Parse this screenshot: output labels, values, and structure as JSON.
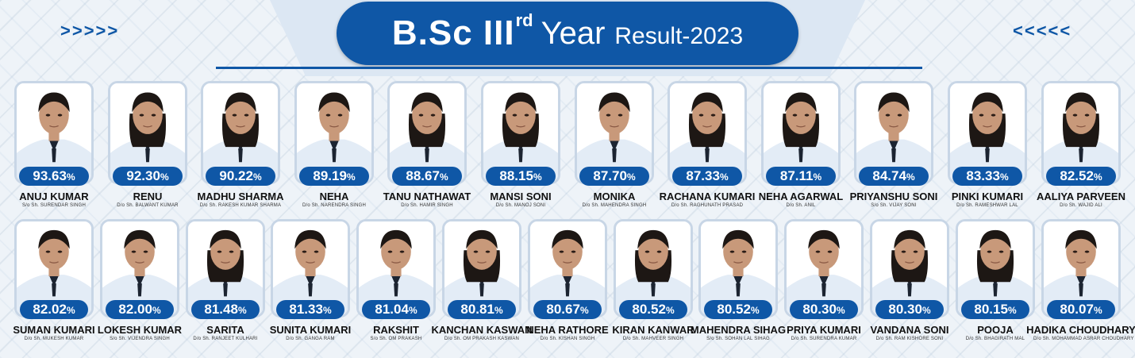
{
  "header": {
    "title_main": "B.Sc III",
    "title_sup": "rd",
    "title_year": "Year",
    "title_result": "Result-2023",
    "left_arrows": ">>>>>",
    "right_arrows": "<<<<<"
  },
  "students": [
    {
      "score": "93.63",
      "pct": "%",
      "name": "ANUJ KUMAR",
      "parent": "S/o Sh. SURENDAR SINGH"
    },
    {
      "score": "92.30",
      "pct": "%",
      "name": "RENU",
      "parent": "D/o Sh. BALWANT KUMAR"
    },
    {
      "score": "90.22",
      "pct": "%",
      "name": "MADHU SHARMA",
      "parent": "D/o Sh. RAKESH KUMAR SHARMA"
    },
    {
      "score": "89.19",
      "pct": "%",
      "name": "NEHA",
      "parent": "D/o Sh. NARENDRA SINGH"
    },
    {
      "score": "88.67",
      "pct": "%",
      "name": "TANU NATHAWAT",
      "parent": "D/o Sh. HAMIR SINGH"
    },
    {
      "score": "88.15",
      "pct": "%",
      "name": "MANSI SONI",
      "parent": "D/o Sh. MANOJ SONI"
    },
    {
      "score": "87.70",
      "pct": "%",
      "name": "MONIKA",
      "parent": "D/o Sh. MAHENDRA SINGH"
    },
    {
      "score": "87.33",
      "pct": "%",
      "name": "RACHANA KUMARI",
      "parent": "D/o Sh. RAGHUNATH PRASAD"
    },
    {
      "score": "87.11",
      "pct": "%",
      "name": "NEHA AGARWAL",
      "parent": "D/o Sh. ANIL"
    },
    {
      "score": "84.74",
      "pct": "%",
      "name": "PRIYANSHU SONI",
      "parent": "S/o Sh. VIJAY SONI"
    },
    {
      "score": "83.33",
      "pct": "%",
      "name": "PINKI KUMARI",
      "parent": "D/o Sh. RAMESHWAR LAL"
    },
    {
      "score": "82.52",
      "pct": "%",
      "name": "AALIYA PARVEEN",
      "parent": "D/o Sh. WAJID ALI"
    },
    {
      "score": "82.02",
      "pct": "%",
      "name": "SUMAN KUMARI",
      "parent": "D/o Sh. MUKESH KUMAR"
    },
    {
      "score": "82.00",
      "pct": "%",
      "name": "LOKESH KUMAR",
      "parent": "S/o Sh. VIJENDRA SINGH"
    },
    {
      "score": "81.48",
      "pct": "%",
      "name": "SARITA",
      "parent": "D/o Sh. RANJEET KULHARI"
    },
    {
      "score": "81.33",
      "pct": "%",
      "name": "SUNITA KUMARI",
      "parent": "D/o Sh. GANGA RAM"
    },
    {
      "score": "81.04",
      "pct": "%",
      "name": "RAKSHIT",
      "parent": "S/o Sh. OM PRAKASH"
    },
    {
      "score": "80.81",
      "pct": "%",
      "name": "KANCHAN KASWAN",
      "parent": "D/o Sh. OM PRAKASH KASWAN"
    },
    {
      "score": "80.67",
      "pct": "%",
      "name": "NEHA RATHORE",
      "parent": "D/o Sh. KISHAN SINGH"
    },
    {
      "score": "80.52",
      "pct": "%",
      "name": "KIRAN KANWAR",
      "parent": "D/o Sh. MAHVEER SINGH"
    },
    {
      "score": "80.52",
      "pct": "%",
      "name": "MAHENDRA SIHAG",
      "parent": "S/o Sh. SOHAN LAL SIHAG"
    },
    {
      "score": "80.30",
      "pct": "%",
      "name": "PRIYA KUMARI",
      "parent": "D/o Sh. SURENDRA KUMAR"
    },
    {
      "score": "80.30",
      "pct": "%",
      "name": "VANDANA SONI",
      "parent": "D/o Sh. RAM KISHORE SONI"
    },
    {
      "score": "80.15",
      "pct": "%",
      "name": "POOJA",
      "parent": "D/o Sh. BHAGIRATH MAL"
    },
    {
      "score": "80.07",
      "pct": "%",
      "name": "HADIKA CHOUDHARY",
      "parent": "D/o Sh. MOHAMMAD ASRAR CHOUDHARY"
    }
  ],
  "colors": {
    "accent": "#0f57a6",
    "photo_background": "#ffffff",
    "uniform": "#e3ecf6",
    "tie": "#1c2431",
    "hair_dark": "#1d1714",
    "skin": "#c8997a"
  }
}
